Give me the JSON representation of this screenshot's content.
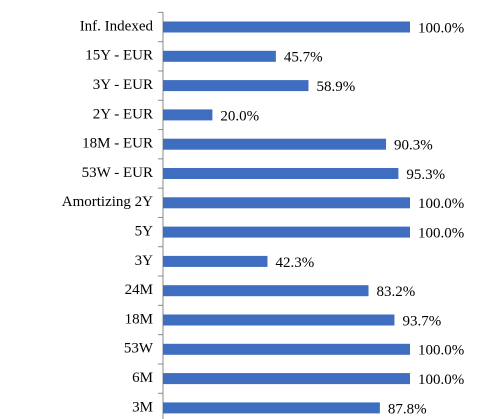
{
  "chart_data": {
    "type": "hbar",
    "categories": [
      "Inf. Indexed",
      "15Y - EUR",
      "3Y - EUR",
      "2Y - EUR",
      "18M - EUR",
      "53W - EUR",
      "Amortizing 2Y",
      "5Y",
      "3Y",
      "24M",
      "18M",
      "53W",
      "6M",
      "3M"
    ],
    "values": [
      100.0,
      45.7,
      58.9,
      20.0,
      90.3,
      95.3,
      100.0,
      100.0,
      42.3,
      83.2,
      93.7,
      100.0,
      100.0,
      87.8
    ],
    "value_labels": [
      "100.0%",
      "45.7%",
      "58.9%",
      "20.0%",
      "90.3%",
      "95.3%",
      "100.0%",
      "100.0%",
      "42.3%",
      "83.2%",
      "93.7%",
      "100.0%",
      "100.0%",
      "87.8%"
    ],
    "color": "#3f6dbf"
  }
}
